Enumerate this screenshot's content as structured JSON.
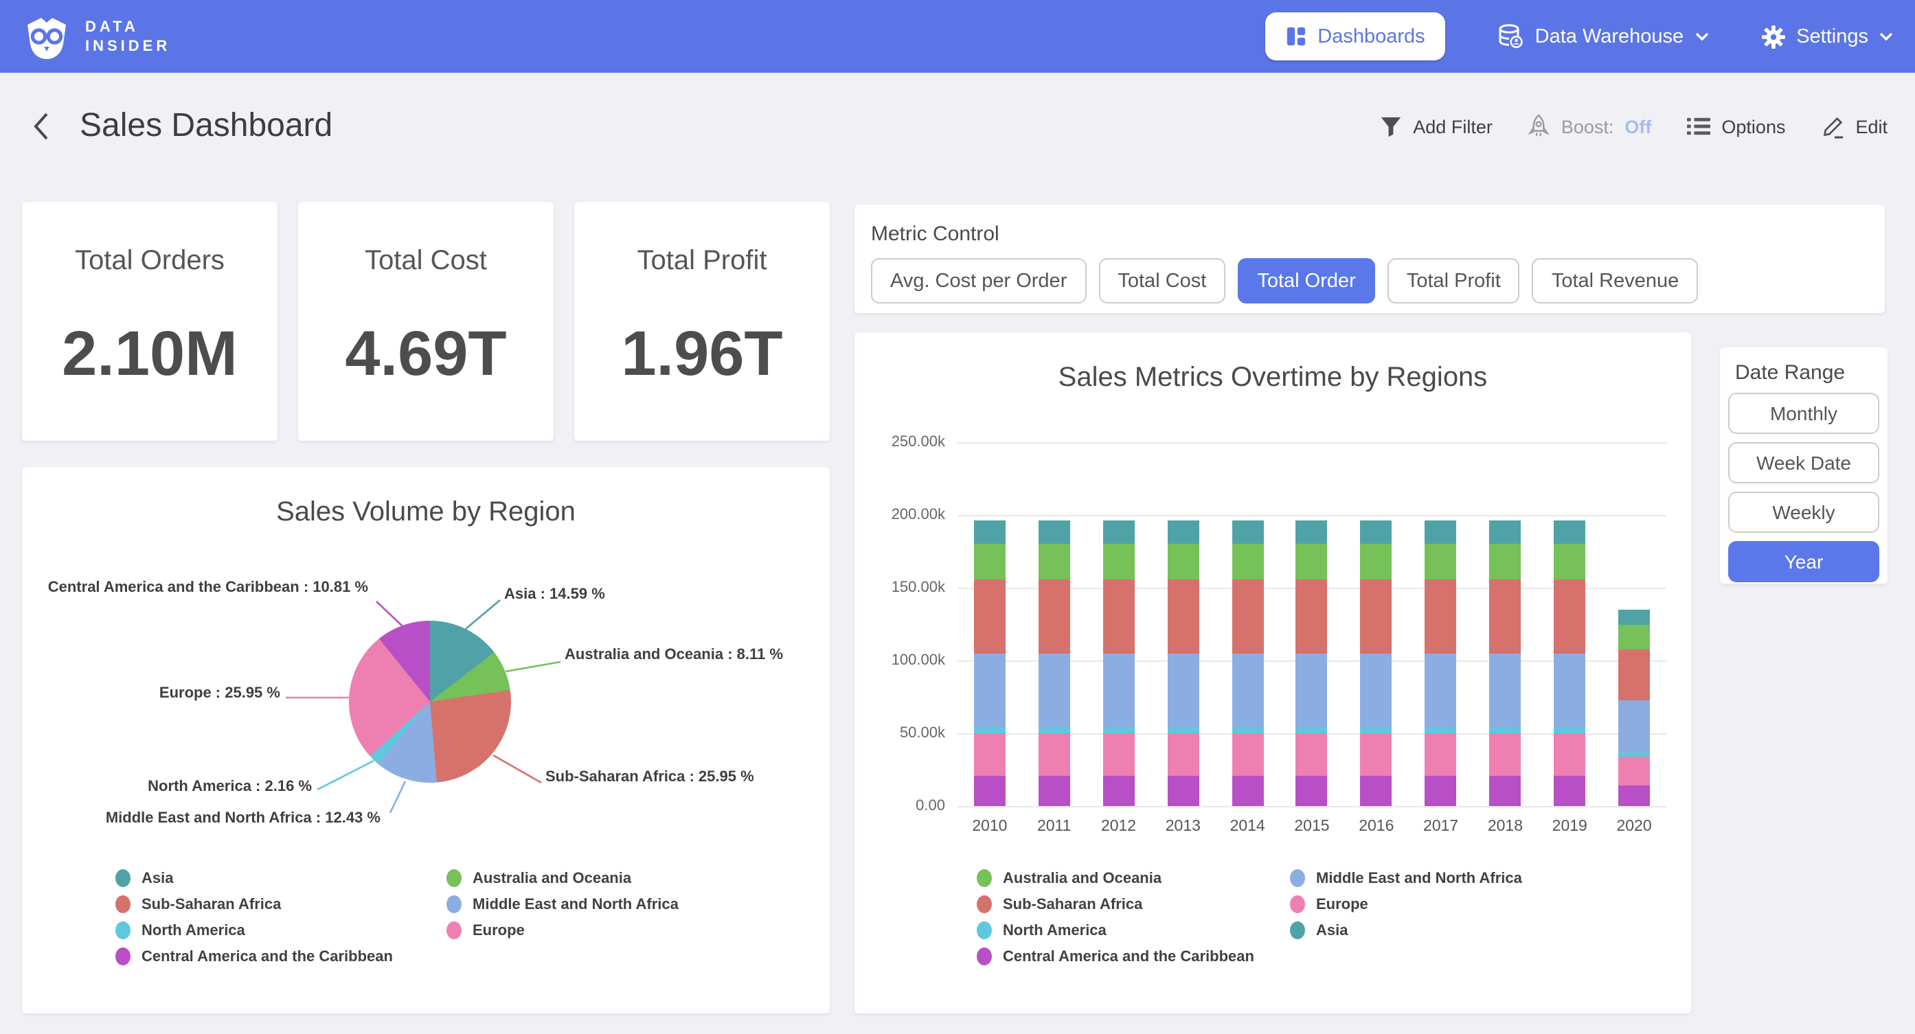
{
  "nav": {
    "brand_line1": "DATA",
    "brand_line2": "INSIDER",
    "items": [
      {
        "label": "Dashboards",
        "active": true
      },
      {
        "label": "Data Warehouse",
        "has_dropdown": true
      },
      {
        "label": "Settings",
        "has_dropdown": true
      }
    ]
  },
  "header": {
    "title": "Sales Dashboard",
    "actions": {
      "add_filter": "Add Filter",
      "boost_label": "Boost:",
      "boost_state": "Off",
      "options": "Options",
      "edit": "Edit"
    }
  },
  "kpis": [
    {
      "label": "Total Orders",
      "value": "2.10M"
    },
    {
      "label": "Total Cost",
      "value": "4.69T"
    },
    {
      "label": "Total Profit",
      "value": "1.96T"
    }
  ],
  "metric_control": {
    "label": "Metric Control",
    "options": [
      "Avg. Cost per Order",
      "Total Cost",
      "Total Order",
      "Total Profit",
      "Total Revenue"
    ],
    "active": "Total Order"
  },
  "date_range": {
    "label": "Date Range",
    "options": [
      "Monthly",
      "Week Date",
      "Weekly",
      "Year"
    ],
    "active": "Year"
  },
  "colors": {
    "nav_blue": "#5b75e7",
    "active_button_blue": "#5b78ea",
    "boost_off_blue": "#a9baf3",
    "page_bg": "#f0f0f5"
  },
  "chart_data": [
    {
      "type": "pie",
      "title": "Sales Volume by Region",
      "slices": [
        {
          "label": "Asia",
          "pct": 14.59,
          "color": "#4fa3a6"
        },
        {
          "label": "Australia and Oceania",
          "pct": 8.11,
          "color": "#76c158"
        },
        {
          "label": "Sub-Saharan Africa",
          "pct": 25.95,
          "color": "#d7716b"
        },
        {
          "label": "Middle East and North Africa",
          "pct": 12.43,
          "color": "#8bade2"
        },
        {
          "label": "North America",
          "pct": 2.16,
          "color": "#5fc8de"
        },
        {
          "label": "Europe",
          "pct": 25.95,
          "color": "#ee80b1"
        },
        {
          "label": "Central America and the Caribbean",
          "pct": 10.81,
          "color": "#b84fc6"
        }
      ],
      "label_format": "{label} : {pct} %",
      "legend_position": "bottom",
      "legend_columns": [
        [
          "Asia",
          "Sub-Saharan Africa",
          "North America",
          "Central America and the Caribbean"
        ],
        [
          "Australia and Oceania",
          "Middle East and North Africa",
          "Europe"
        ]
      ]
    },
    {
      "type": "bar",
      "stacked": true,
      "title": "Sales Metrics Overtime by Regions",
      "categories": [
        "2010",
        "2011",
        "2012",
        "2013",
        "2014",
        "2015",
        "2016",
        "2017",
        "2018",
        "2019",
        "2020"
      ],
      "ylim": [
        0,
        250000
      ],
      "ytick_labels": [
        "0.00",
        "50.00k",
        "100.00k",
        "150.00k",
        "200.00k",
        "250.00k"
      ],
      "grid": true,
      "legend_position": "bottom",
      "series": [
        {
          "name": "Central America and the Caribbean",
          "color": "#b84fc6",
          "values": [
            21200,
            21200,
            21200,
            21200,
            21200,
            21200,
            21200,
            21200,
            21200,
            21200,
            14600
          ]
        },
        {
          "name": "Asia",
          "color": "#ee80b1",
          "values": [
            28600,
            28600,
            28600,
            28600,
            28600,
            28600,
            28600,
            28600,
            28600,
            28600,
            19700
          ]
        },
        {
          "name": "North America",
          "color": "#5fc8de",
          "values": [
            4200,
            4200,
            4200,
            4200,
            4200,
            4200,
            4200,
            4200,
            4200,
            4200,
            2900
          ]
        },
        {
          "name": "Europe",
          "color": "#8bade2",
          "values": [
            50900,
            50900,
            50900,
            50900,
            50900,
            50900,
            50900,
            50900,
            50900,
            50900,
            35100
          ]
        },
        {
          "name": "Sub-Saharan Africa",
          "color": "#d7716b",
          "values": [
            50900,
            50900,
            50900,
            50900,
            50900,
            50900,
            50900,
            50900,
            50900,
            50900,
            35100
          ]
        },
        {
          "name": "Middle East and North Africa",
          "color": "#76c158",
          "values": [
            24400,
            24400,
            24400,
            24400,
            24400,
            24400,
            24400,
            24400,
            24400,
            24400,
            16800
          ]
        },
        {
          "name": "Australia and Oceania",
          "color": "#4fa3a6",
          "values": [
            15900,
            15900,
            15900,
            15900,
            15900,
            15900,
            15900,
            15900,
            15900,
            15900,
            11000
          ]
        }
      ],
      "legend_columns": [
        [
          "Australia and Oceania",
          "Sub-Saharan Africa",
          "North America",
          "Central America and the Caribbean"
        ],
        [
          "Middle East and North Africa",
          "Europe",
          "Asia"
        ]
      ]
    }
  ]
}
